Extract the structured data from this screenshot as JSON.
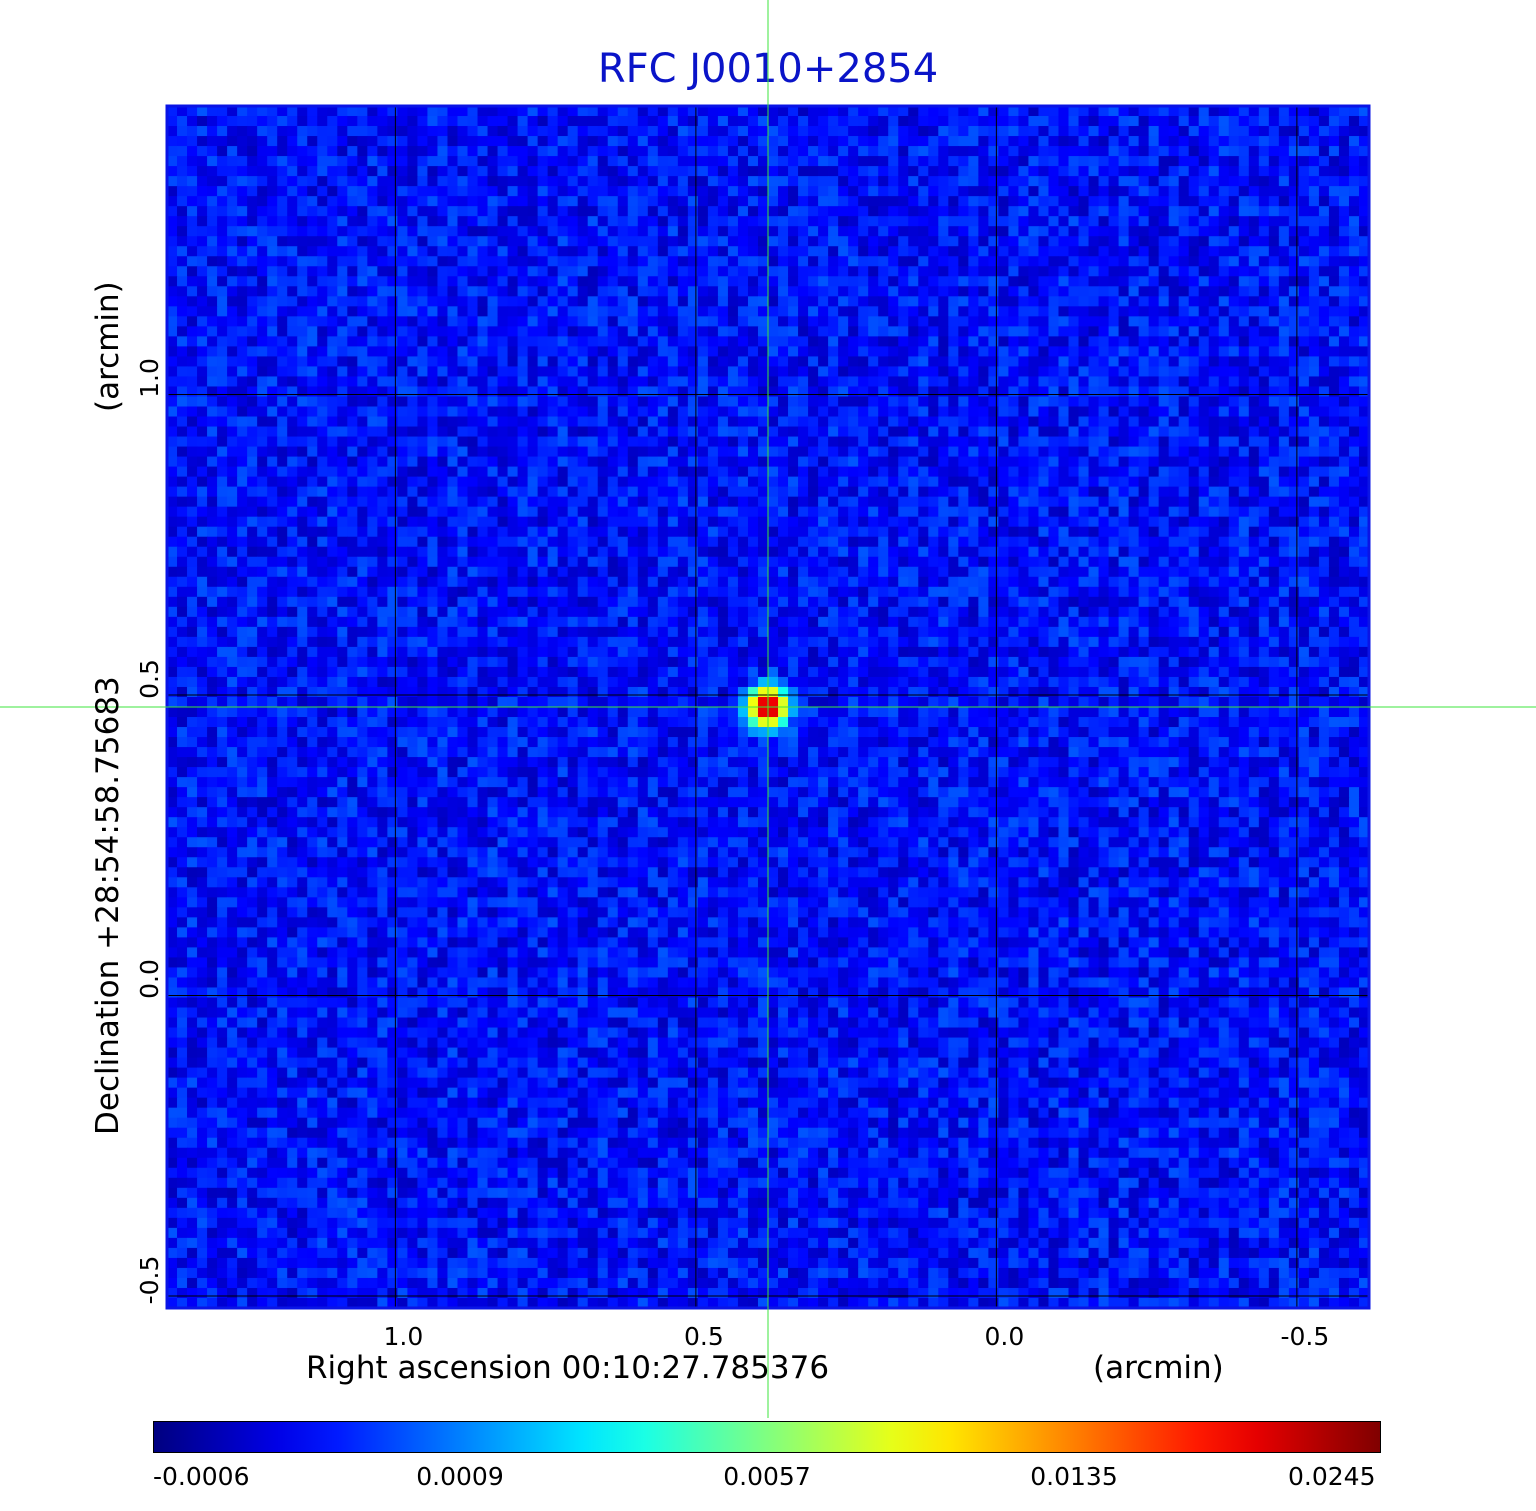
{
  "chart_data": {
    "type": "heatmap",
    "title": "RFC J0010+2854",
    "xlabel": "Right ascension  00:10:27.785376",
    "x_unit": "(arcmin)",
    "ylabel": "Declination  +28:54:58.75683",
    "y_unit": "(arcmin)",
    "x_ticks": [
      "1.0",
      "0.5",
      "0.0",
      "-0.5"
    ],
    "y_ticks": [
      "1.0",
      "0.5",
      "0.0",
      "-0.5"
    ],
    "x_tick_values": [
      1.0,
      0.5,
      0.0,
      -0.5
    ],
    "y_tick_values": [
      1.0,
      0.5,
      0.0,
      -0.5
    ],
    "xlim": [
      1.38,
      -0.62
    ],
    "ylim": [
      -0.52,
      1.48
    ],
    "grid": true,
    "colormap": "jet",
    "colorbar": {
      "tick_labels": [
        "-0.0006",
        "0.0009",
        "0.0057",
        "0.0135",
        "0.0245"
      ],
      "tick_values": [
        -0.0006,
        0.0009,
        0.0057,
        0.0135,
        0.0245
      ]
    },
    "peak": {
      "x": 0.38,
      "y": 0.48,
      "value": 0.0245
    },
    "crosshair": {
      "x": 0.38,
      "y": 0.48
    },
    "background_level": 0.0002
  },
  "colors": {
    "title": "#0a14c8",
    "frame": "#0a14e6",
    "grid": "#000000",
    "crosshair": "#3ce63c"
  }
}
